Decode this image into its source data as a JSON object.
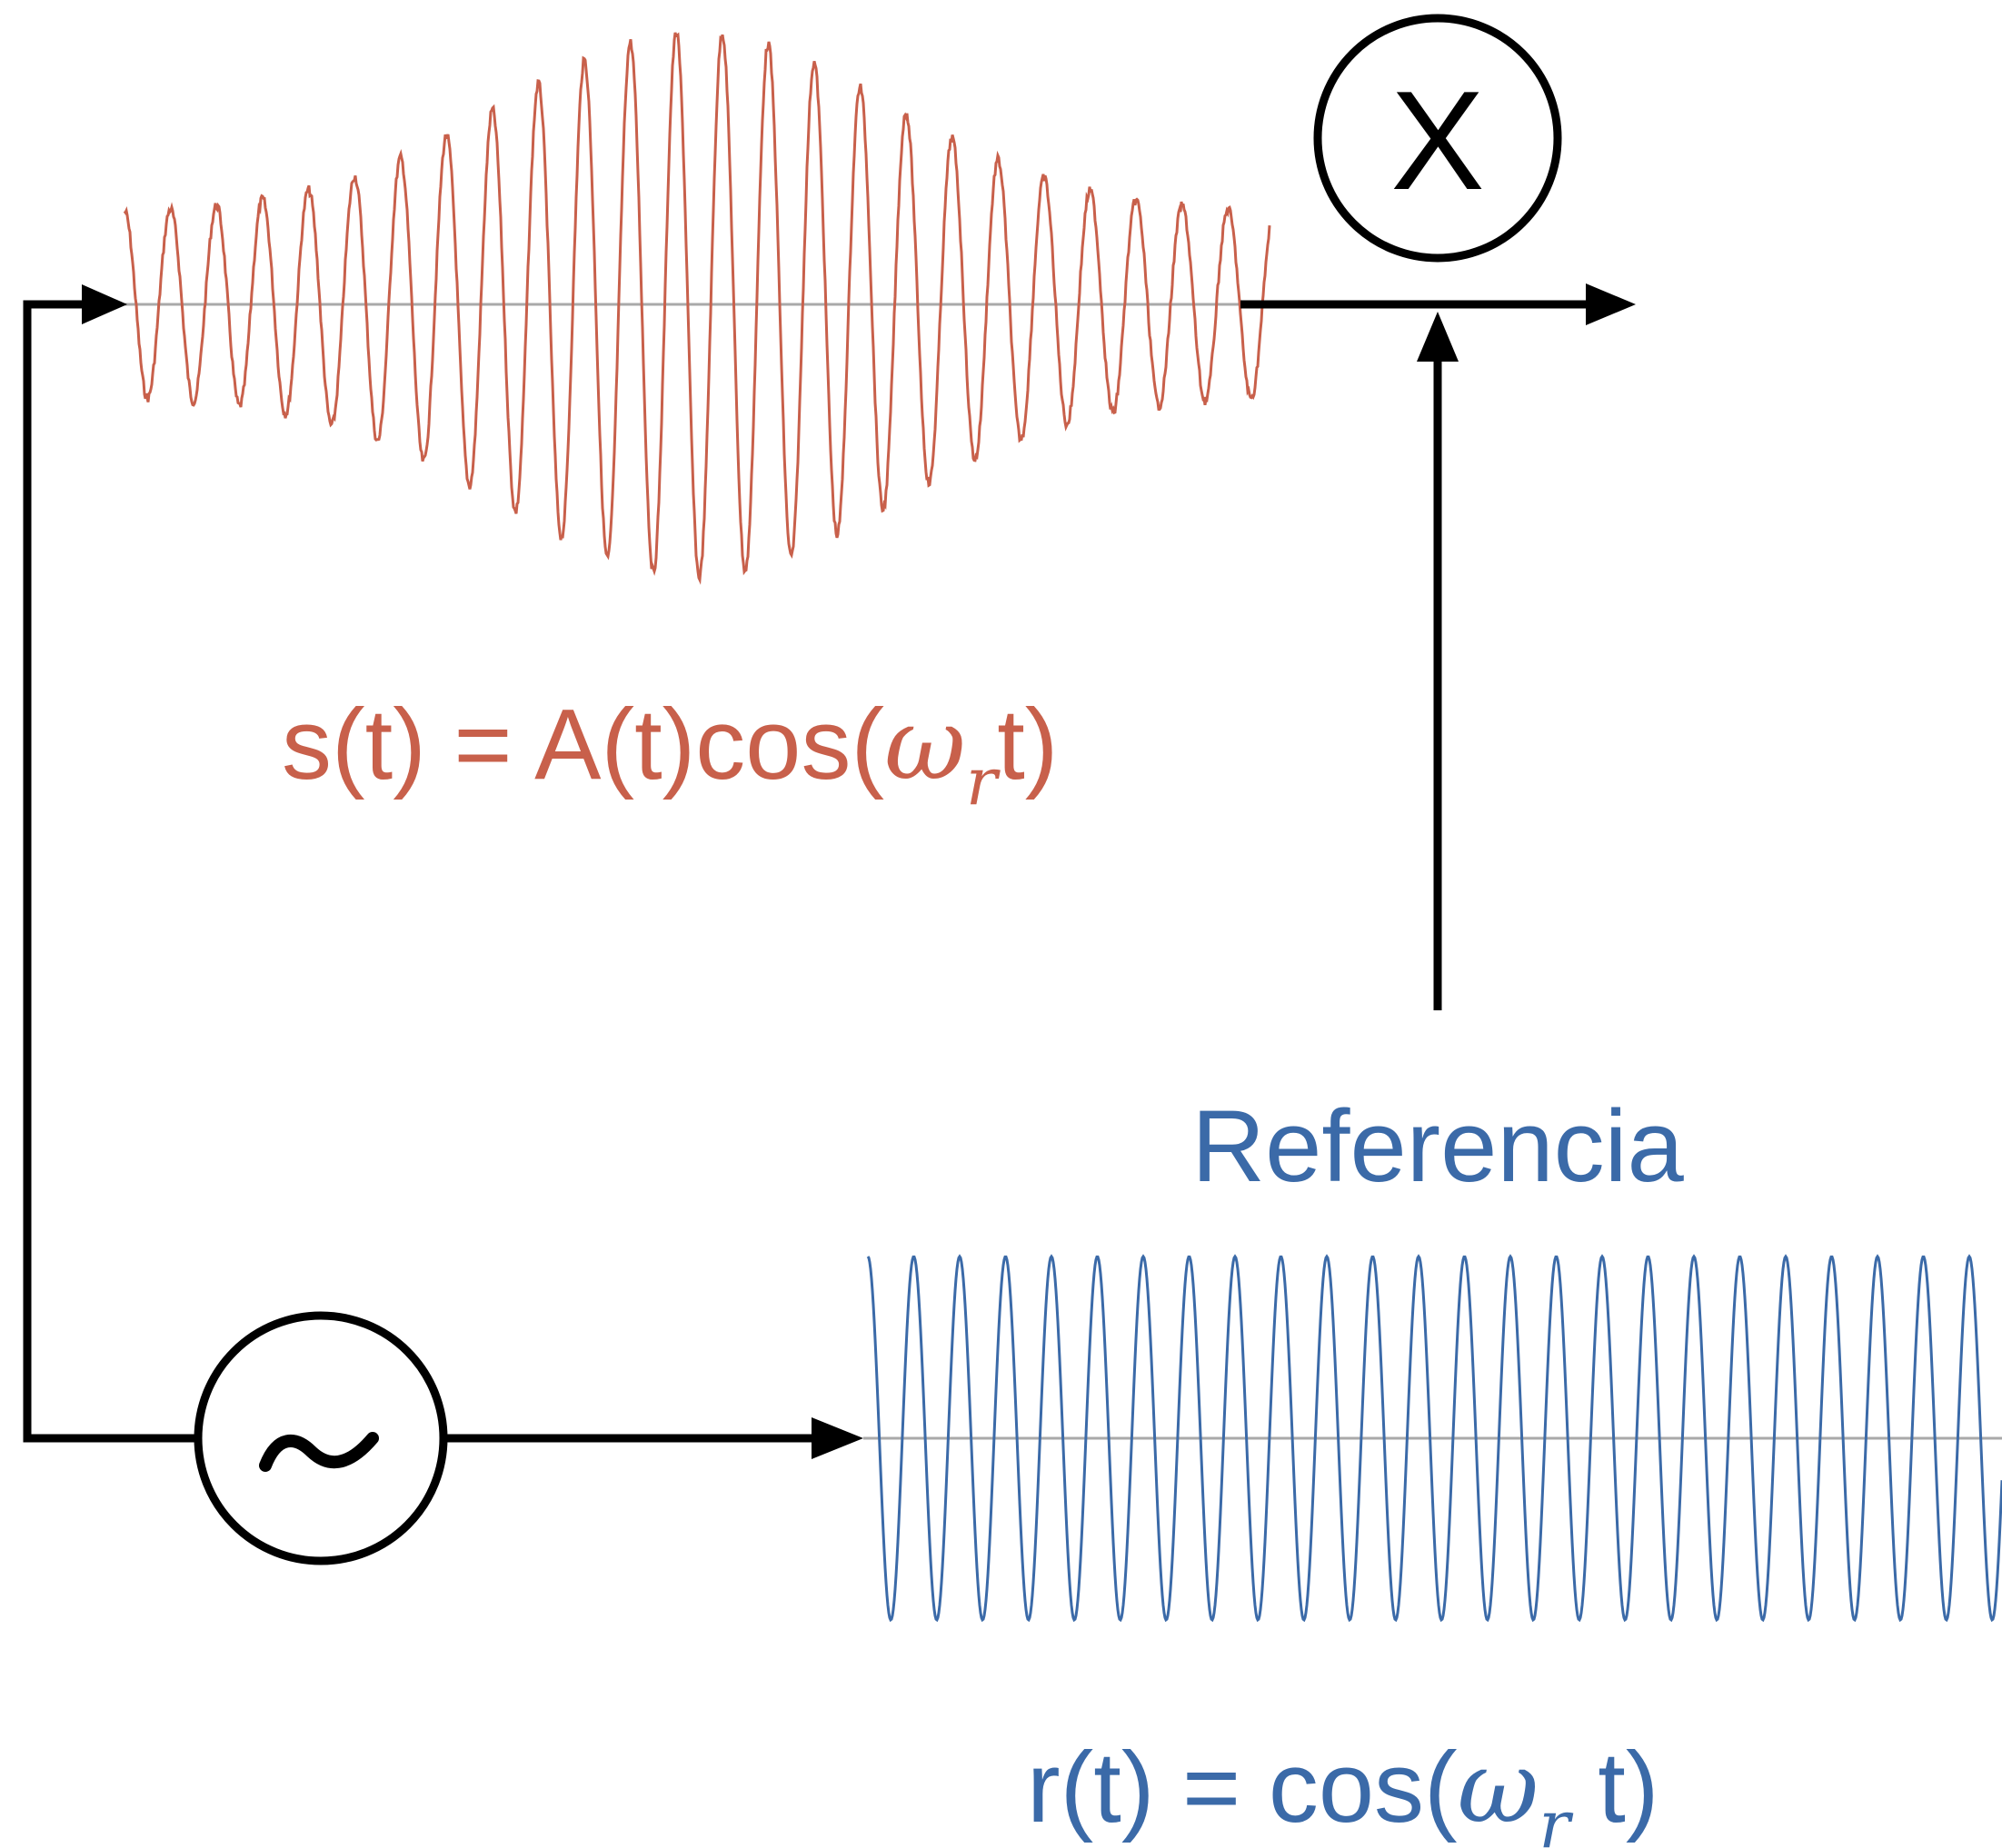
{
  "colors": {
    "signal": "#c8604b",
    "reference": "#3b6aa8",
    "line": "#000000",
    "baseline": "#a9a9a9"
  },
  "mixer": {
    "symbol": "X",
    "icon": "multiply-icon"
  },
  "oscillator": {
    "symbol": "~",
    "icon": "sine-source-icon"
  },
  "signal_formula": {
    "prefix": "s(t) = A(t)cos(",
    "omega": "ω",
    "subscript": "r",
    "suffix": "t)"
  },
  "reference_label": "Referencia",
  "reference_formula": {
    "prefix": "r(t) = cos(",
    "omega": "ω",
    "subscript": "r",
    "suffix": " t)"
  }
}
